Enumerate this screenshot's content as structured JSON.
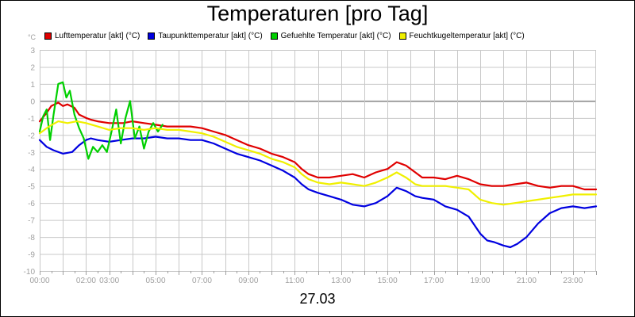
{
  "chart_data": {
    "type": "line",
    "title": "Temperaturen [pro Tag]",
    "date": "27.03",
    "y_unit": "°C",
    "ylim": [
      -10,
      3
    ],
    "y_ticks": [
      "3",
      "2",
      "1",
      "0",
      "-1",
      "-2",
      "-3",
      "-4",
      "-5",
      "-6",
      "-7",
      "-8",
      "-9",
      "-10"
    ],
    "xlim": [
      0,
      24
    ],
    "x_ticks": [
      {
        "v": 0,
        "label": "00:00"
      },
      {
        "v": 2,
        "label": "02:00"
      },
      {
        "v": 3,
        "label": "03:00"
      },
      {
        "v": 5,
        "label": "05:00"
      },
      {
        "v": 7,
        "label": "07:00"
      },
      {
        "v": 9,
        "label": "09:00"
      },
      {
        "v": 11,
        "label": "11:00"
      },
      {
        "v": 13,
        "label": "13:00"
      },
      {
        "v": 15,
        "label": "15:00"
      },
      {
        "v": 17,
        "label": "17:00"
      },
      {
        "v": 19,
        "label": "19:00"
      },
      {
        "v": 21,
        "label": "21:00"
      },
      {
        "v": 23,
        "label": "23:00"
      }
    ],
    "grid": true,
    "legend_position": "top",
    "series": [
      {
        "name": "Lufttemperatur [akt] (°C)",
        "color": "#e00000",
        "x": [
          0,
          0.3,
          0.5,
          0.8,
          1.0,
          1.2,
          1.5,
          1.7,
          2.0,
          2.2,
          2.5,
          3.0,
          3.3,
          3.6,
          4.0,
          4.5,
          5.0,
          5.5,
          6.0,
          6.5,
          7.0,
          7.5,
          8.0,
          8.5,
          9.0,
          9.5,
          10.0,
          10.5,
          11.0,
          11.3,
          11.6,
          12.0,
          12.5,
          13.0,
          13.5,
          14.0,
          14.5,
          15.0,
          15.4,
          15.8,
          16.2,
          16.5,
          17.0,
          17.5,
          18.0,
          18.5,
          19.0,
          19.5,
          20.0,
          20.5,
          21.0,
          21.5,
          22.0,
          22.5,
          23.0,
          23.5,
          24.0
        ],
        "y": [
          -1.2,
          -0.7,
          -0.3,
          -0.1,
          -0.3,
          -0.2,
          -0.4,
          -0.8,
          -1.0,
          -1.1,
          -1.2,
          -1.3,
          -1.3,
          -1.3,
          -1.2,
          -1.3,
          -1.4,
          -1.5,
          -1.5,
          -1.5,
          -1.6,
          -1.8,
          -2.0,
          -2.3,
          -2.6,
          -2.8,
          -3.1,
          -3.3,
          -3.6,
          -4.0,
          -4.3,
          -4.5,
          -4.5,
          -4.4,
          -4.3,
          -4.5,
          -4.2,
          -4.0,
          -3.6,
          -3.8,
          -4.2,
          -4.5,
          -4.5,
          -4.6,
          -4.4,
          -4.6,
          -4.9,
          -5.0,
          -5.0,
          -4.9,
          -4.8,
          -5.0,
          -5.1,
          -5.0,
          -5.0,
          -5.2,
          -5.2
        ]
      },
      {
        "name": "Taupunkttemperatur [akt] (°C)",
        "color": "#0000e0",
        "x": [
          0,
          0.3,
          0.6,
          1.0,
          1.4,
          1.7,
          2.0,
          2.2,
          2.5,
          3.0,
          3.5,
          4.0,
          4.5,
          5.0,
          5.5,
          6.0,
          6.5,
          7.0,
          7.5,
          8.0,
          8.5,
          9.0,
          9.5,
          10.0,
          10.5,
          11.0,
          11.3,
          11.6,
          12.0,
          12.5,
          13.0,
          13.5,
          14.0,
          14.5,
          15.0,
          15.4,
          15.8,
          16.2,
          16.5,
          17.0,
          17.5,
          18.0,
          18.5,
          19.0,
          19.3,
          19.6,
          20.0,
          20.3,
          20.6,
          21.0,
          21.5,
          22.0,
          22.5,
          23.0,
          23.5,
          24.0
        ],
        "y": [
          -2.3,
          -2.7,
          -2.9,
          -3.1,
          -3.0,
          -2.6,
          -2.3,
          -2.2,
          -2.3,
          -2.4,
          -2.3,
          -2.2,
          -2.2,
          -2.1,
          -2.2,
          -2.2,
          -2.3,
          -2.3,
          -2.5,
          -2.8,
          -3.1,
          -3.3,
          -3.5,
          -3.8,
          -4.1,
          -4.5,
          -4.9,
          -5.2,
          -5.4,
          -5.6,
          -5.8,
          -6.1,
          -6.2,
          -6.0,
          -5.6,
          -5.1,
          -5.3,
          -5.6,
          -5.7,
          -5.8,
          -6.2,
          -6.4,
          -6.8,
          -7.8,
          -8.2,
          -8.3,
          -8.5,
          -8.6,
          -8.4,
          -8.0,
          -7.2,
          -6.6,
          -6.3,
          -6.2,
          -6.3,
          -6.2
        ]
      },
      {
        "name": "Gefuehlte Temperatur [akt] (°C)",
        "color": "#00d000",
        "x": [
          0,
          0.15,
          0.3,
          0.45,
          0.6,
          0.8,
          1.0,
          1.15,
          1.3,
          1.5,
          1.7,
          1.9,
          2.1,
          2.3,
          2.5,
          2.7,
          2.9,
          3.1,
          3.3,
          3.5,
          3.7,
          3.9,
          4.1,
          4.3,
          4.5,
          4.7,
          4.9,
          5.1,
          5.3
        ],
        "y": [
          -1.8,
          -0.9,
          -0.5,
          -2.3,
          -0.8,
          1.0,
          1.1,
          0.2,
          0.6,
          -0.8,
          -1.6,
          -2.2,
          -3.4,
          -2.7,
          -3.0,
          -2.6,
          -3.0,
          -1.8,
          -0.5,
          -2.5,
          -1.0,
          0.0,
          -2.2,
          -1.5,
          -2.8,
          -1.8,
          -1.3,
          -1.8,
          -1.4
        ]
      },
      {
        "name": "Feuchtkugeltemperatur [akt] (°C)",
        "color": "#f0f000",
        "x": [
          0,
          0.4,
          0.8,
          1.2,
          1.6,
          2.0,
          2.5,
          3.0,
          3.5,
          4.0,
          4.5,
          5.0,
          5.5,
          6.0,
          6.5,
          7.0,
          7.5,
          8.0,
          8.5,
          9.0,
          9.5,
          10.0,
          10.5,
          11.0,
          11.3,
          11.6,
          12.0,
          12.5,
          13.0,
          13.5,
          14.0,
          14.5,
          15.0,
          15.4,
          15.8,
          16.2,
          16.5,
          17.0,
          17.5,
          18.0,
          18.5,
          19.0,
          19.5,
          20.0,
          20.5,
          21.0,
          21.5,
          22.0,
          22.5,
          23.0,
          23.5,
          24.0
        ],
        "y": [
          -1.9,
          -1.5,
          -1.2,
          -1.3,
          -1.2,
          -1.3,
          -1.5,
          -1.7,
          -1.6,
          -1.6,
          -1.7,
          -1.6,
          -1.7,
          -1.7,
          -1.8,
          -1.9,
          -2.1,
          -2.4,
          -2.7,
          -2.9,
          -3.1,
          -3.4,
          -3.6,
          -3.9,
          -4.3,
          -4.6,
          -4.8,
          -4.9,
          -4.8,
          -4.9,
          -5.0,
          -4.8,
          -4.5,
          -4.2,
          -4.5,
          -4.9,
          -5.0,
          -5.0,
          -5.0,
          -5.1,
          -5.2,
          -5.8,
          -6.0,
          -6.1,
          -6.0,
          -5.9,
          -5.8,
          -5.7,
          -5.6,
          -5.5,
          -5.5,
          -5.5
        ]
      }
    ]
  }
}
